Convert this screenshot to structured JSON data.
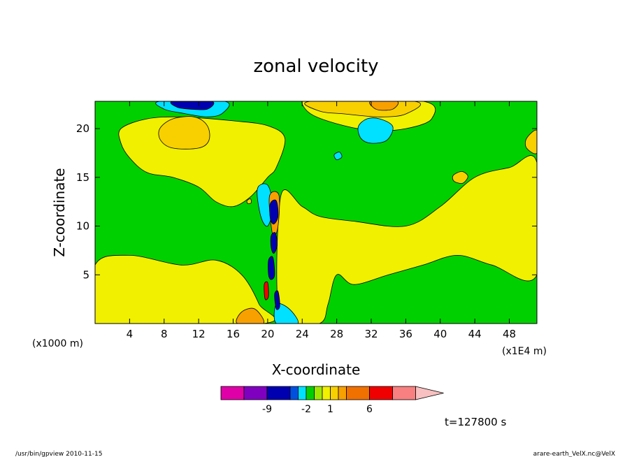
{
  "chart_data": {
    "type": "heatmap",
    "title": "zonal velocity",
    "xlabel": "X-coordinate",
    "ylabel": "Z-coordinate",
    "x_unit_left": "(x1000 m)",
    "x_unit_right": "(x1E4 m)",
    "x_ticks": [
      4,
      8,
      12,
      16,
      20,
      24,
      28,
      32,
      36,
      40,
      44,
      48
    ],
    "y_ticks": [
      5,
      10,
      15,
      20
    ],
    "xlim": [
      0,
      51.2
    ],
    "ylim": [
      0,
      22.8
    ],
    "time_label": "t=127800 s",
    "colorbar": {
      "colors": [
        "#e000a8",
        "#8000c0",
        "#0000b0",
        "#0050e0",
        "#00e0ff",
        "#00d000",
        "#a0e800",
        "#f0f000",
        "#f8d000",
        "#f8a000",
        "#f07000",
        "#f00000",
        "#f88080",
        "#f8c0c0"
      ],
      "labels": [
        {
          "text": "-9",
          "after_index": 1
        },
        {
          "text": "-2",
          "after_index": 4
        },
        {
          "text": "1",
          "after_index": 7
        },
        {
          "text": "6",
          "after_index": 10
        }
      ]
    },
    "background_color": "#00d000",
    "regions": [
      {
        "color": "#f0f000",
        "points": [
          [
            0,
            6
          ],
          [
            4,
            7
          ],
          [
            10,
            6
          ],
          [
            14,
            6.5
          ],
          [
            17,
            5
          ],
          [
            19,
            2
          ],
          [
            19.5,
            0
          ],
          [
            0,
            0
          ]
        ]
      },
      {
        "color": "#f0f000",
        "points": [
          [
            21.5,
            13
          ],
          [
            24,
            12
          ],
          [
            26,
            11
          ],
          [
            30,
            10.5
          ],
          [
            36,
            10
          ],
          [
            40,
            12
          ],
          [
            44,
            15
          ],
          [
            48,
            16
          ],
          [
            51.2,
            16.5
          ],
          [
            51.2,
            5
          ],
          [
            46,
            6
          ],
          [
            42,
            7
          ],
          [
            38,
            6
          ],
          [
            34,
            5
          ],
          [
            30,
            4
          ],
          [
            28,
            5
          ],
          [
            27,
            2
          ],
          [
            26,
            0
          ],
          [
            21.5,
            0
          ]
        ]
      },
      {
        "color": "#f0f000",
        "points": [
          [
            3,
            20
          ],
          [
            6,
            21
          ],
          [
            10,
            21.2
          ],
          [
            16,
            20.8
          ],
          [
            20,
            20.3
          ],
          [
            22,
            19
          ],
          [
            21,
            16
          ],
          [
            20,
            15
          ],
          [
            18,
            13
          ],
          [
            16,
            12
          ],
          [
            14,
            12.5
          ],
          [
            12,
            14
          ],
          [
            9,
            15
          ],
          [
            6,
            15.5
          ],
          [
            4,
            17
          ],
          [
            3,
            18.5
          ]
        ]
      },
      {
        "color": "#f0f000",
        "points": [
          [
            26,
            22.8
          ],
          [
            38,
            22.8
          ],
          [
            39,
            21
          ],
          [
            36,
            20
          ],
          [
            32,
            19.8
          ],
          [
            28,
            20.5
          ],
          [
            25,
            21.5
          ],
          [
            24,
            22.8
          ]
        ]
      },
      {
        "color": "#f8d000",
        "points": [
          [
            7.5,
            20
          ],
          [
            9,
            21
          ],
          [
            11.5,
            21.2
          ],
          [
            13,
            20.3
          ],
          [
            13.2,
            18.8
          ],
          [
            12,
            18
          ],
          [
            9,
            18
          ],
          [
            7.6,
            18.8
          ]
        ]
      },
      {
        "color": "#f8d000",
        "points": [
          [
            25,
            22.8
          ],
          [
            37,
            22.8
          ],
          [
            36,
            21.5
          ],
          [
            33,
            21.2
          ],
          [
            29,
            21.5
          ],
          [
            26,
            21.8
          ]
        ]
      },
      {
        "color": "#f8a000",
        "points": [
          [
            32,
            22.8
          ],
          [
            35,
            22.8
          ],
          [
            34.5,
            22
          ],
          [
            33,
            21.9
          ],
          [
            32.2,
            22.2
          ]
        ]
      },
      {
        "color": "#f8d000",
        "points": [
          [
            41.5,
            15.2
          ],
          [
            42.5,
            15.6
          ],
          [
            43.2,
            15.1
          ],
          [
            42.6,
            14.4
          ],
          [
            41.6,
            14.6
          ]
        ]
      },
      {
        "color": "#f8d000",
        "points": [
          [
            50,
            19
          ],
          [
            51.2,
            19.8
          ],
          [
            51.2,
            17.5
          ],
          [
            50,
            18
          ]
        ]
      },
      {
        "color": "#00e0ff",
        "points": [
          [
            30.5,
            20.2
          ],
          [
            31.5,
            21
          ],
          [
            33,
            21
          ],
          [
            34.5,
            20.2
          ],
          [
            33.8,
            18.8
          ],
          [
            32,
            18.5
          ],
          [
            30.8,
            19
          ]
        ]
      },
      {
        "color": "#00e0ff",
        "points": [
          [
            7.5,
            22.8
          ],
          [
            15,
            22.8
          ],
          [
            14.8,
            21.6
          ],
          [
            13,
            21.2
          ],
          [
            10,
            21.6
          ],
          [
            8,
            22
          ]
        ]
      },
      {
        "color": "#0000b0",
        "points": [
          [
            9,
            22.8
          ],
          [
            13.5,
            22.8
          ],
          [
            13,
            22
          ],
          [
            11,
            22
          ],
          [
            9.5,
            22.2
          ]
        ]
      },
      {
        "color": "#00e0ff",
        "points": [
          [
            18.8,
            13.8
          ],
          [
            20,
            14.2
          ],
          [
            20.6,
            12
          ],
          [
            20,
            10
          ],
          [
            19.2,
            11
          ]
        ]
      },
      {
        "color": "#00e0ff",
        "points": [
          [
            21,
            2
          ],
          [
            22.5,
            1.5
          ],
          [
            23.5,
            0
          ],
          [
            21,
            0
          ]
        ]
      },
      {
        "color": "#f8a000",
        "points": [
          [
            16.5,
            0
          ],
          [
            17,
            1.2
          ],
          [
            18.5,
            1.5
          ],
          [
            19.5,
            0
          ]
        ]
      },
      {
        "color": "#f8a000",
        "points": [
          [
            20.2,
            13
          ],
          [
            21.3,
            13.2
          ],
          [
            21.2,
            10
          ],
          [
            20.6,
            9
          ]
        ]
      },
      {
        "color": "#0000b0",
        "points": [
          [
            20.3,
            12.3
          ],
          [
            21,
            12.6
          ],
          [
            21.2,
            11
          ],
          [
            20.7,
            10.2
          ],
          [
            20.3,
            10.8
          ]
        ]
      },
      {
        "color": "#0000b0",
        "points": [
          [
            20.4,
            9
          ],
          [
            20.9,
            9.3
          ],
          [
            21.1,
            8
          ],
          [
            20.7,
            7.2
          ],
          [
            20.4,
            7.8
          ]
        ]
      },
      {
        "color": "#0000b0",
        "points": [
          [
            20.1,
            6.5
          ],
          [
            20.6,
            6.8
          ],
          [
            20.8,
            5
          ],
          [
            20.4,
            4.5
          ],
          [
            20.1,
            5
          ]
        ]
      },
      {
        "color": "#f00000",
        "points": [
          [
            19.6,
            4
          ],
          [
            20,
            4.2
          ],
          [
            20.1,
            2.8
          ],
          [
            19.7,
            2.5
          ]
        ]
      },
      {
        "color": "#0000b0",
        "points": [
          [
            20.8,
            3
          ],
          [
            21.2,
            3.3
          ],
          [
            21.4,
            1.8
          ],
          [
            21,
            1.5
          ]
        ]
      },
      {
        "color": "#00e0ff",
        "points": [
          [
            27.7,
            17.3
          ],
          [
            28.3,
            17.6
          ],
          [
            28.6,
            17.1
          ],
          [
            28,
            16.8
          ]
        ]
      },
      {
        "color": "#f8d000",
        "points": [
          [
            17.6,
            12.6
          ],
          [
            18,
            12.8
          ],
          [
            18.1,
            12.4
          ],
          [
            17.7,
            12.3
          ]
        ]
      }
    ]
  },
  "footer": {
    "left": "/usr/bin/gpview   2010-11-15",
    "right": "arare-earth_VelX.nc@VelX"
  }
}
